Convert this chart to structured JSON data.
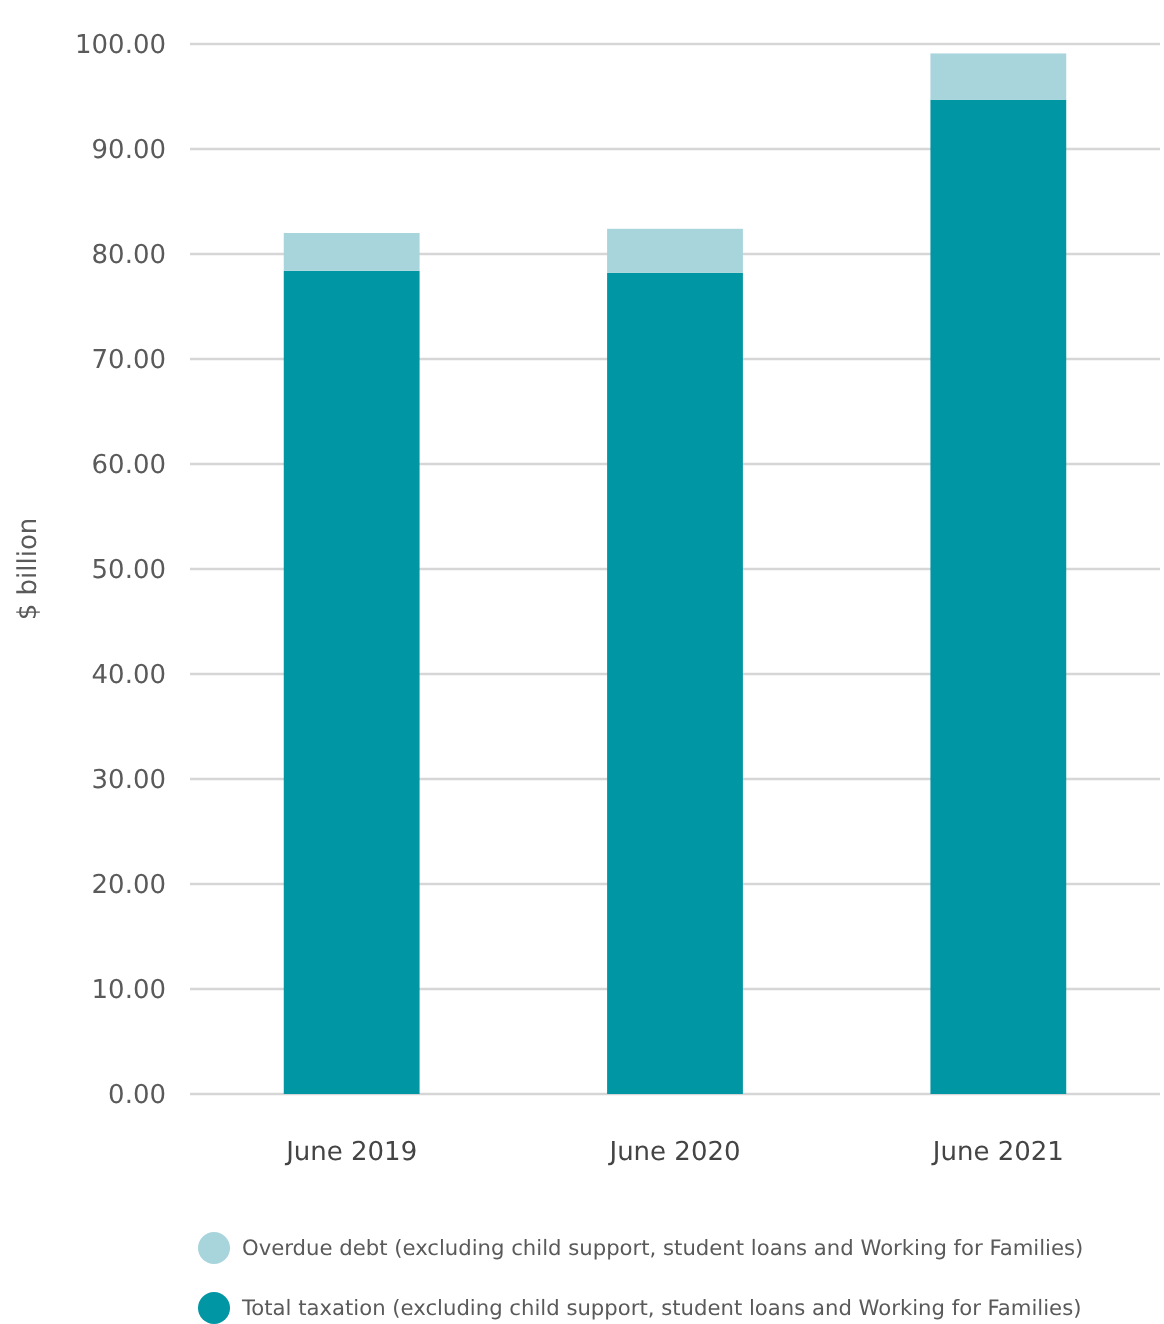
{
  "chart_data": {
    "type": "bar",
    "stacked": true,
    "ylabel": "$ billion",
    "categories": [
      "June 2019",
      "June 2020",
      "June 2021"
    ],
    "series": [
      {
        "name": "Total taxation (excluding child support, student loans and Working for Families)",
        "color": "#0096a3",
        "values": [
          78.4,
          78.2,
          94.7
        ]
      },
      {
        "name": "Overdue debt (excluding child support, student loans and Working for Families)",
        "color": "#a8d4dc",
        "values": [
          3.6,
          4.2,
          4.4
        ]
      }
    ],
    "ylim": [
      0,
      100
    ],
    "yticks": [
      {
        "value": 0,
        "label": "0.00"
      },
      {
        "value": 10,
        "label": "10.00"
      },
      {
        "value": 20,
        "label": "20.00"
      },
      {
        "value": 30,
        "label": "30.00"
      },
      {
        "value": 40,
        "label": "40.00"
      },
      {
        "value": 50,
        "label": "50.00"
      },
      {
        "value": 60,
        "label": "60.00"
      },
      {
        "value": 70,
        "label": "70.00"
      },
      {
        "value": 80,
        "label": "80.00"
      },
      {
        "value": 90,
        "label": "90.00"
      },
      {
        "value": 100,
        "label": "100.00"
      }
    ],
    "grid": "y",
    "legend": "bottom"
  }
}
